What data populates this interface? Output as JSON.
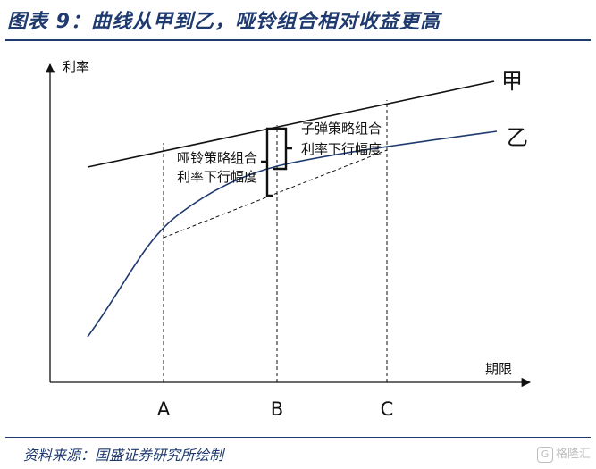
{
  "title": "图表 9：曲线从甲到乙，哑铃组合相对收益更高",
  "source": "资料来源：国盛证券研究所绘制",
  "watermark": "格隆汇",
  "colors": {
    "title": "#1f3a6e",
    "curve_yi": "#1f3a6e",
    "line_jia": "#111111"
  },
  "diagram": {
    "y_axis_label": "利率",
    "x_axis_label": "期限",
    "curve_jia_label": "甲",
    "curve_yi_label": "乙",
    "ticks": [
      "A",
      "B",
      "C"
    ],
    "annotation_barbell": [
      "哑铃策略组合",
      "利率下行幅度"
    ],
    "annotation_bullet": [
      "子弹策略组合",
      "利率下行幅度"
    ]
  }
}
